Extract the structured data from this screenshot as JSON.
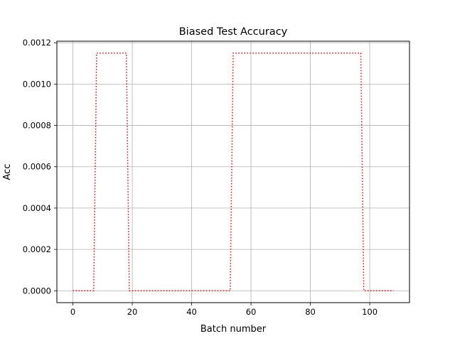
{
  "chart_data": {
    "type": "line",
    "title": "Biased Test Accuracy",
    "xlabel": "Batch number",
    "ylabel": "Acc",
    "xlim": [
      -5.4,
      113.4
    ],
    "ylim": [
      -5.75e-05,
      0.0012075
    ],
    "xticks": [
      0,
      20,
      40,
      60,
      80,
      100
    ],
    "yticks": [
      0.0,
      0.0002,
      0.0004,
      0.0006,
      0.0008,
      0.001,
      0.0012
    ],
    "xtick_labels": [
      "0",
      "20",
      "40",
      "60",
      "80",
      "100"
    ],
    "ytick_labels": [
      "0.0000",
      "0.0002",
      "0.0004",
      "0.0006",
      "0.0008",
      "0.0010",
      "0.0012"
    ],
    "grid": true,
    "series": [
      {
        "color": "#ff0000",
        "line_style": "dotted",
        "x": [
          0,
          7,
          8,
          18,
          19,
          53,
          54,
          97,
          98,
          108
        ],
        "y": [
          0,
          0,
          0.00115,
          0.00115,
          0,
          0,
          0.00115,
          0.00115,
          0,
          0
        ]
      }
    ]
  }
}
